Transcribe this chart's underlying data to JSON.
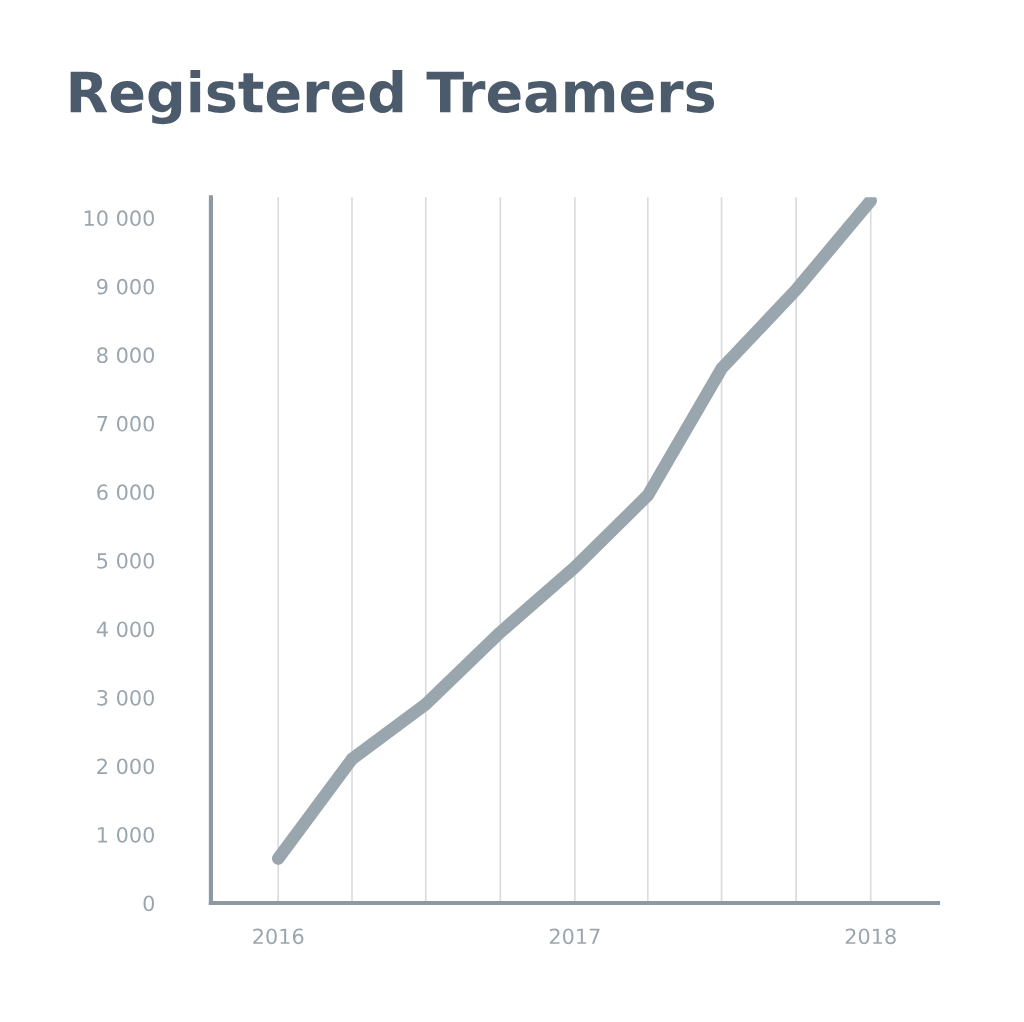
{
  "chart_data": {
    "type": "line",
    "title": "Registered Treamers",
    "x": [
      "2016-01-01",
      "2016-04-01",
      "2016-07-01",
      "2016-10-01",
      "2017-01-01",
      "2017-04-01",
      "2017-07-01",
      "2017-10-01",
      "2018-01-01"
    ],
    "series": [
      {
        "color": "#9aa6ae",
        "values": [
          650,
          2100,
          2900,
          3950,
          4900,
          5950,
          7800,
          8950,
          10250
        ]
      }
    ],
    "xlim": [
      "2015-10-10",
      "2018-03-25"
    ],
    "xticks": [
      {
        "value": "2016-01-01",
        "label": "2016"
      },
      {
        "value": "2016-04-01",
        "label": null
      },
      {
        "value": "2016-07-01",
        "label": null
      },
      {
        "value": "2016-10-01",
        "label": null
      },
      {
        "value": "2017-01-01",
        "label": "2017"
      },
      {
        "value": "2017-04-01",
        "label": null
      },
      {
        "value": "2017-07-01",
        "label": null
      },
      {
        "value": "2017-10-01",
        "label": null
      },
      {
        "value": "2018-01-01",
        "label": "2018"
      }
    ],
    "ylim": [
      0,
      10300
    ],
    "yticks": [
      0,
      {
        "value": 1000,
        "label": "1 000"
      },
      {
        "value": 2000,
        "label": "2 000"
      },
      {
        "value": 3000,
        "label": "3 000"
      },
      {
        "value": 4000,
        "label": "4 000"
      },
      {
        "value": 5000,
        "label": "5 000"
      },
      {
        "value": 6000,
        "label": "6 000"
      },
      {
        "value": 7000,
        "label": "7 000"
      },
      {
        "value": 8000,
        "label": "8 000"
      },
      {
        "value": 9000,
        "label": "9 000"
      },
      {
        "value": 10000,
        "label": "10 000"
      }
    ],
    "grid": "x",
    "legend": false,
    "marker": "none",
    "line_style": "solid"
  }
}
